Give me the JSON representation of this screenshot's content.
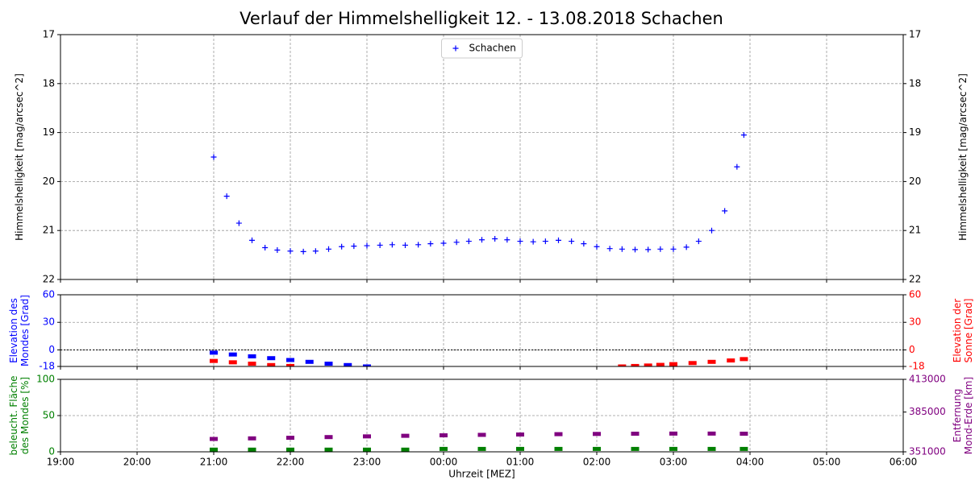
{
  "chart_data": [
    {
      "type": "scatter",
      "title": "Verlauf der Himmelshelligkeit 12. - 13.08.2018 Schachen",
      "ylabel": [
        "Himmelshelligkeit [mag/arcsec^2]"
      ],
      "y2label": [
        "Himmelshelligkeit [mag/arcsec^2]"
      ],
      "ylim": [
        22,
        17
      ],
      "yticks": [
        17,
        18,
        19,
        20,
        21,
        22
      ],
      "mirror_y": true,
      "grid": true,
      "legend": "upper center",
      "series": [
        {
          "name": "Schachen",
          "color": "#0000ff",
          "marker": "plus",
          "x": [
            2,
            2.17,
            2.33,
            2.5,
            2.67,
            2.83,
            3,
            3.17,
            3.33,
            3.5,
            3.67,
            3.83,
            4,
            4.17,
            4.33,
            4.5,
            4.67,
            4.83,
            5,
            5.17,
            5.33,
            5.5,
            5.67,
            5.83,
            6,
            6.17,
            6.33,
            6.5,
            6.67,
            6.83,
            7,
            7.17,
            7.33,
            7.5,
            7.67,
            7.83,
            8,
            8.17,
            8.33,
            8.5,
            8.67,
            8.83,
            8.92
          ],
          "values": [
            19.5,
            20.3,
            20.85,
            21.2,
            21.35,
            21.4,
            21.42,
            21.43,
            21.42,
            21.38,
            21.33,
            21.32,
            21.31,
            21.3,
            21.29,
            21.3,
            21.29,
            21.27,
            21.26,
            21.24,
            21.22,
            21.19,
            21.17,
            21.19,
            21.22,
            21.23,
            21.22,
            21.2,
            21.22,
            21.27,
            21.33,
            21.37,
            21.38,
            21.39,
            21.39,
            21.38,
            21.38,
            21.34,
            21.22,
            21.0,
            20.6,
            19.7,
            19.05
          ]
        }
      ]
    },
    {
      "type": "scatter",
      "ylabel": [
        "Elevation des",
        "Mondes [Grad]"
      ],
      "ylabel_color": "#0000ff",
      "y2label": [
        "Elevation der",
        "Sonne [Grad]"
      ],
      "y2label_color": "#ff0000",
      "ylim": [
        -18,
        60
      ],
      "yticks": [
        -18,
        0,
        30,
        60
      ],
      "y2lim": [
        -18,
        60
      ],
      "y2ticks": [
        -18,
        0,
        30,
        60
      ],
      "hline": 0,
      "grid": true,
      "series": [
        {
          "color": "#0000ff",
          "marker": "square",
          "x": [
            2,
            2.25,
            2.5,
            2.75,
            3,
            3.25,
            3.5,
            3.75,
            4
          ],
          "values": [
            -3,
            -5,
            -7,
            -9,
            -11,
            -13,
            -15,
            -16.5,
            -18
          ]
        },
        {
          "color": "#ff0000",
          "marker": "square",
          "axis": "y2",
          "x": [
            2,
            2.25,
            2.5,
            2.75,
            3,
            7.33,
            7.5,
            7.67,
            7.83,
            8,
            8.25,
            8.5,
            8.75,
            8.92
          ],
          "values": [
            -12,
            -13.5,
            -15,
            -16.5,
            -17.5,
            -18,
            -17.5,
            -17,
            -16.3,
            -15.5,
            -14.3,
            -13,
            -11.5,
            -10
          ]
        }
      ]
    },
    {
      "type": "scatter",
      "ylabel": [
        "beleucht. Fläche",
        "des Mondes [%]"
      ],
      "ylabel_color": "#008000",
      "y2label": [
        "Entfernung",
        "Mond-Erde [km]"
      ],
      "y2label_color": "#800080",
      "ylim": [
        0,
        100
      ],
      "yticks": [
        0,
        50,
        100
      ],
      "y2lim": [
        351000,
        413000
      ],
      "y2ticks": [
        351000,
        385000,
        413000
      ],
      "grid": true,
      "xlabel": "Uhrzeit [MEZ]",
      "xlim": [
        0,
        11
      ],
      "xticks": [
        {
          "value": 0,
          "label": "19:00"
        },
        {
          "value": 1,
          "label": "20:00"
        },
        {
          "value": 2,
          "label": "21:00"
        },
        {
          "value": 3,
          "label": "22:00"
        },
        {
          "value": 4,
          "label": "23:00"
        },
        {
          "value": 5,
          "label": "00:00"
        },
        {
          "value": 6,
          "label": "01:00"
        },
        {
          "value": 7,
          "label": "02:00"
        },
        {
          "value": 8,
          "label": "03:00"
        },
        {
          "value": 9,
          "label": "04:00"
        },
        {
          "value": 10,
          "label": "05:00"
        },
        {
          "value": 11,
          "label": "06:00"
        }
      ],
      "series": [
        {
          "color": "#008000",
          "marker": "square",
          "x": [
            2,
            2.5,
            3,
            3.5,
            4,
            4.5,
            5,
            5.5,
            6,
            6.5,
            7,
            7.5,
            8,
            8.5,
            8.92
          ],
          "values": [
            3,
            3,
            3,
            3,
            3,
            3,
            4,
            4,
            4,
            4,
            4,
            4,
            4,
            4,
            4
          ]
        },
        {
          "color": "#800080",
          "marker": "square",
          "axis": "y2",
          "x": [
            2,
            2.5,
            3,
            3.5,
            4,
            4.5,
            5,
            5.5,
            6,
            6.5,
            7,
            7.5,
            8,
            8.5,
            8.92
          ],
          "values": [
            362000,
            362500,
            363000,
            363600,
            364200,
            364700,
            365100,
            365500,
            365800,
            366100,
            366300,
            366500,
            366600,
            366600,
            366500
          ]
        }
      ]
    }
  ]
}
